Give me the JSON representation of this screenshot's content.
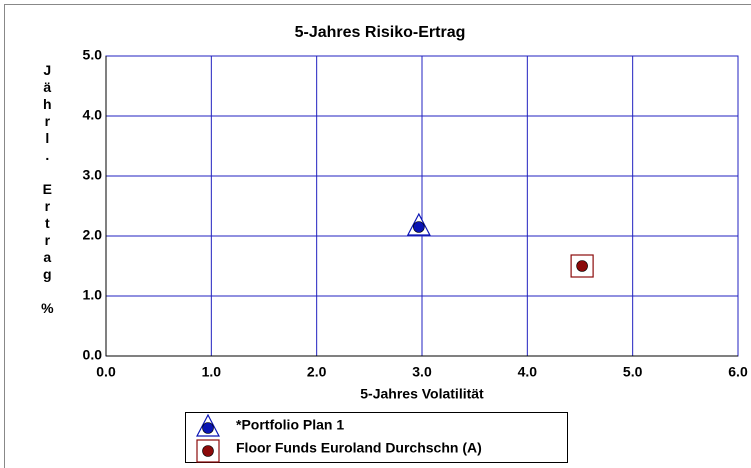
{
  "chart_data": {
    "type": "scatter",
    "title": "5-Jahres Risiko-Ertrag",
    "xlabel": "5-Jahres Volatilität",
    "ylabel": "Jährl. Ertrag %",
    "xlim": [
      0,
      6
    ],
    "ylim": [
      0,
      5
    ],
    "xticks": [
      {
        "value": 0,
        "label": "0.0"
      },
      {
        "value": 1,
        "label": "1.0"
      },
      {
        "value": 2,
        "label": "2.0"
      },
      {
        "value": 3,
        "label": "3.0"
      },
      {
        "value": 4,
        "label": "4.0"
      },
      {
        "value": 5,
        "label": "5.0"
      },
      {
        "value": 6,
        "label": "6.0"
      }
    ],
    "yticks": [
      {
        "value": 0,
        "label": "0.0"
      },
      {
        "value": 1,
        "label": "1.0"
      },
      {
        "value": 2,
        "label": "2.0"
      },
      {
        "value": 3,
        "label": "3.0"
      },
      {
        "value": 4,
        "label": "4.0"
      },
      {
        "value": 5,
        "label": "5.0"
      }
    ],
    "grid": true,
    "grid_color": "#2020c0",
    "series": [
      {
        "name": "*Portfolio Plan 1",
        "color": "#0a14b4",
        "marker": "triangle",
        "x": [
          2.97
        ],
        "values": [
          2.15
        ]
      },
      {
        "name": "Floor Funds Euroland Durchschn (A)",
        "color": "#8b0a0a",
        "marker": "square",
        "x": [
          4.52
        ],
        "values": [
          1.5
        ]
      }
    ]
  }
}
